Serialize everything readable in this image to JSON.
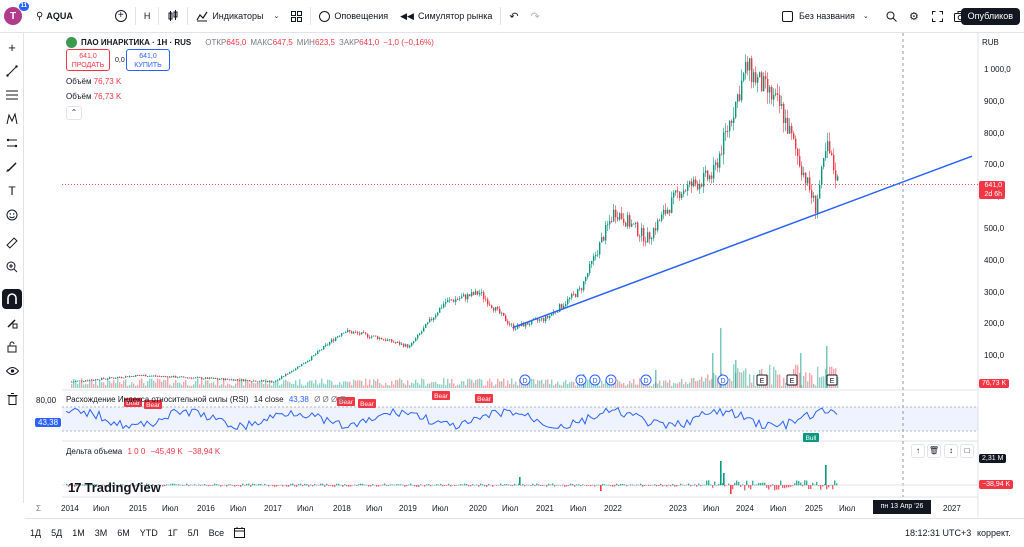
{
  "topbar": {
    "avatar_letter": "T",
    "avatar_badge": "11",
    "symbol": "AQUA",
    "interval": "H",
    "indicators": "Индикаторы",
    "alerts": "Оповещения",
    "replay": "Симулятор рынка",
    "layout_name": "Без названия",
    "publish": "Опубликов"
  },
  "legend": {
    "title": "ПАО ИНАРКТИКА · 1Н · RUS",
    "open_label": "ОТКР",
    "open": "645,0",
    "high_label": "МАКС",
    "high": "647,5",
    "low_label": "МИН",
    "low": "623,5",
    "close_label": "ЗАКР",
    "close": "641,0",
    "change": "−1,0 (−0,16%)",
    "sell_price": "641,0",
    "sell_label": "ПРОДАТЬ",
    "spread": "0,0",
    "buy_price": "641,0",
    "buy_label": "КУПИТЬ",
    "volume1_label": "Объём",
    "volume1_value": "76,73 K",
    "volume2_label": "Объём",
    "volume2_value": "76,73 K"
  },
  "rsi": {
    "title": "Расхождение Индекса относительной силы (RSI)",
    "params": "14 close",
    "value": "43,38",
    "extra": "Ø Ø Ø Ø",
    "level_top": "80,00",
    "current_tag": "43,38",
    "bear_label": "Bear",
    "bull_label": "Bull"
  },
  "delta": {
    "title": "Дельта объема",
    "params": "1 0 0",
    "v1": "−45,49 K",
    "v2": "−38,94 K",
    "tag1": "2,31 M",
    "tag2": "−38,94 K"
  },
  "price_axis": {
    "currency": "RUB",
    "ticks": [
      "1 000,0",
      "900,0",
      "800,0",
      "700,0",
      "600,0",
      "500,0",
      "400,0",
      "300,0",
      "200,0",
      "100,0"
    ],
    "last_price": "641,0",
    "countdown": "2d 6h",
    "volume_tag": "76,73 K"
  },
  "time_axis": {
    "labels": [
      "2014",
      "Июл",
      "2015",
      "Июл",
      "2016",
      "Июл",
      "2017",
      "Июл",
      "2018",
      "Июл",
      "2019",
      "Июл",
      "2020",
      "Июл",
      "2021",
      "Июл",
      "2022",
      "2023",
      "Июл",
      "2024",
      "Июл",
      "2025",
      "Июл",
      "2027"
    ],
    "cursor_date": "пн 13 Апр '26"
  },
  "bottombar": {
    "ranges": [
      "1Д",
      "5Д",
      "1М",
      "3М",
      "6М",
      "YTD",
      "1Г",
      "5Л",
      "Все"
    ],
    "clock": "18:12:31 UTC+3",
    "adjust": "коррект."
  },
  "watermark": "TradingView",
  "event_markers": [
    "D",
    "D",
    "D",
    "D",
    "D",
    "D",
    "E",
    "E",
    "E",
    "E"
  ],
  "colors": {
    "up": "#089981",
    "down": "#f23645",
    "trendline": "#2962ff",
    "rsi": "#2962ff",
    "accent": "#2962ff"
  },
  "chart_data": {
    "type": "candlestick",
    "title": "ПАО ИНАРКТИКА · 1Н · RUS",
    "ylabel": "RUB",
    "ylim": [
      0,
      1050
    ],
    "price_series": [
      {
        "x": "2014",
        "y": 20
      },
      {
        "x": "2015",
        "y": 40
      },
      {
        "x": "2016",
        "y": 30
      },
      {
        "x": "2017",
        "y": 20
      },
      {
        "x": "2017-07",
        "y": 90
      },
      {
        "x": "2018",
        "y": 180
      },
      {
        "x": "2018-07",
        "y": 160
      },
      {
        "x": "2019",
        "y": 130
      },
      {
        "x": "2019-07",
        "y": 270
      },
      {
        "x": "2020",
        "y": 300
      },
      {
        "x": "2020-07",
        "y": 190
      },
      {
        "x": "2021",
        "y": 220
      },
      {
        "x": "2021-07",
        "y": 310
      },
      {
        "x": "2022",
        "y": 560
      },
      {
        "x": "2022-07",
        "y": 470
      },
      {
        "x": "2023",
        "y": 620
      },
      {
        "x": "2023-07",
        "y": 670
      },
      {
        "x": "2024",
        "y": 1010
      },
      {
        "x": "2024-07",
        "y": 880
      },
      {
        "x": "2025",
        "y": 570
      },
      {
        "x": "2025-03",
        "y": 760
      },
      {
        "x": "2025-05",
        "y": 641
      }
    ],
    "trendline": [
      {
        "x": "2020-07",
        "y": 190
      },
      {
        "x": "2027",
        "y": 730
      }
    ],
    "last": 641.0,
    "rsi_last": 43.38
  }
}
